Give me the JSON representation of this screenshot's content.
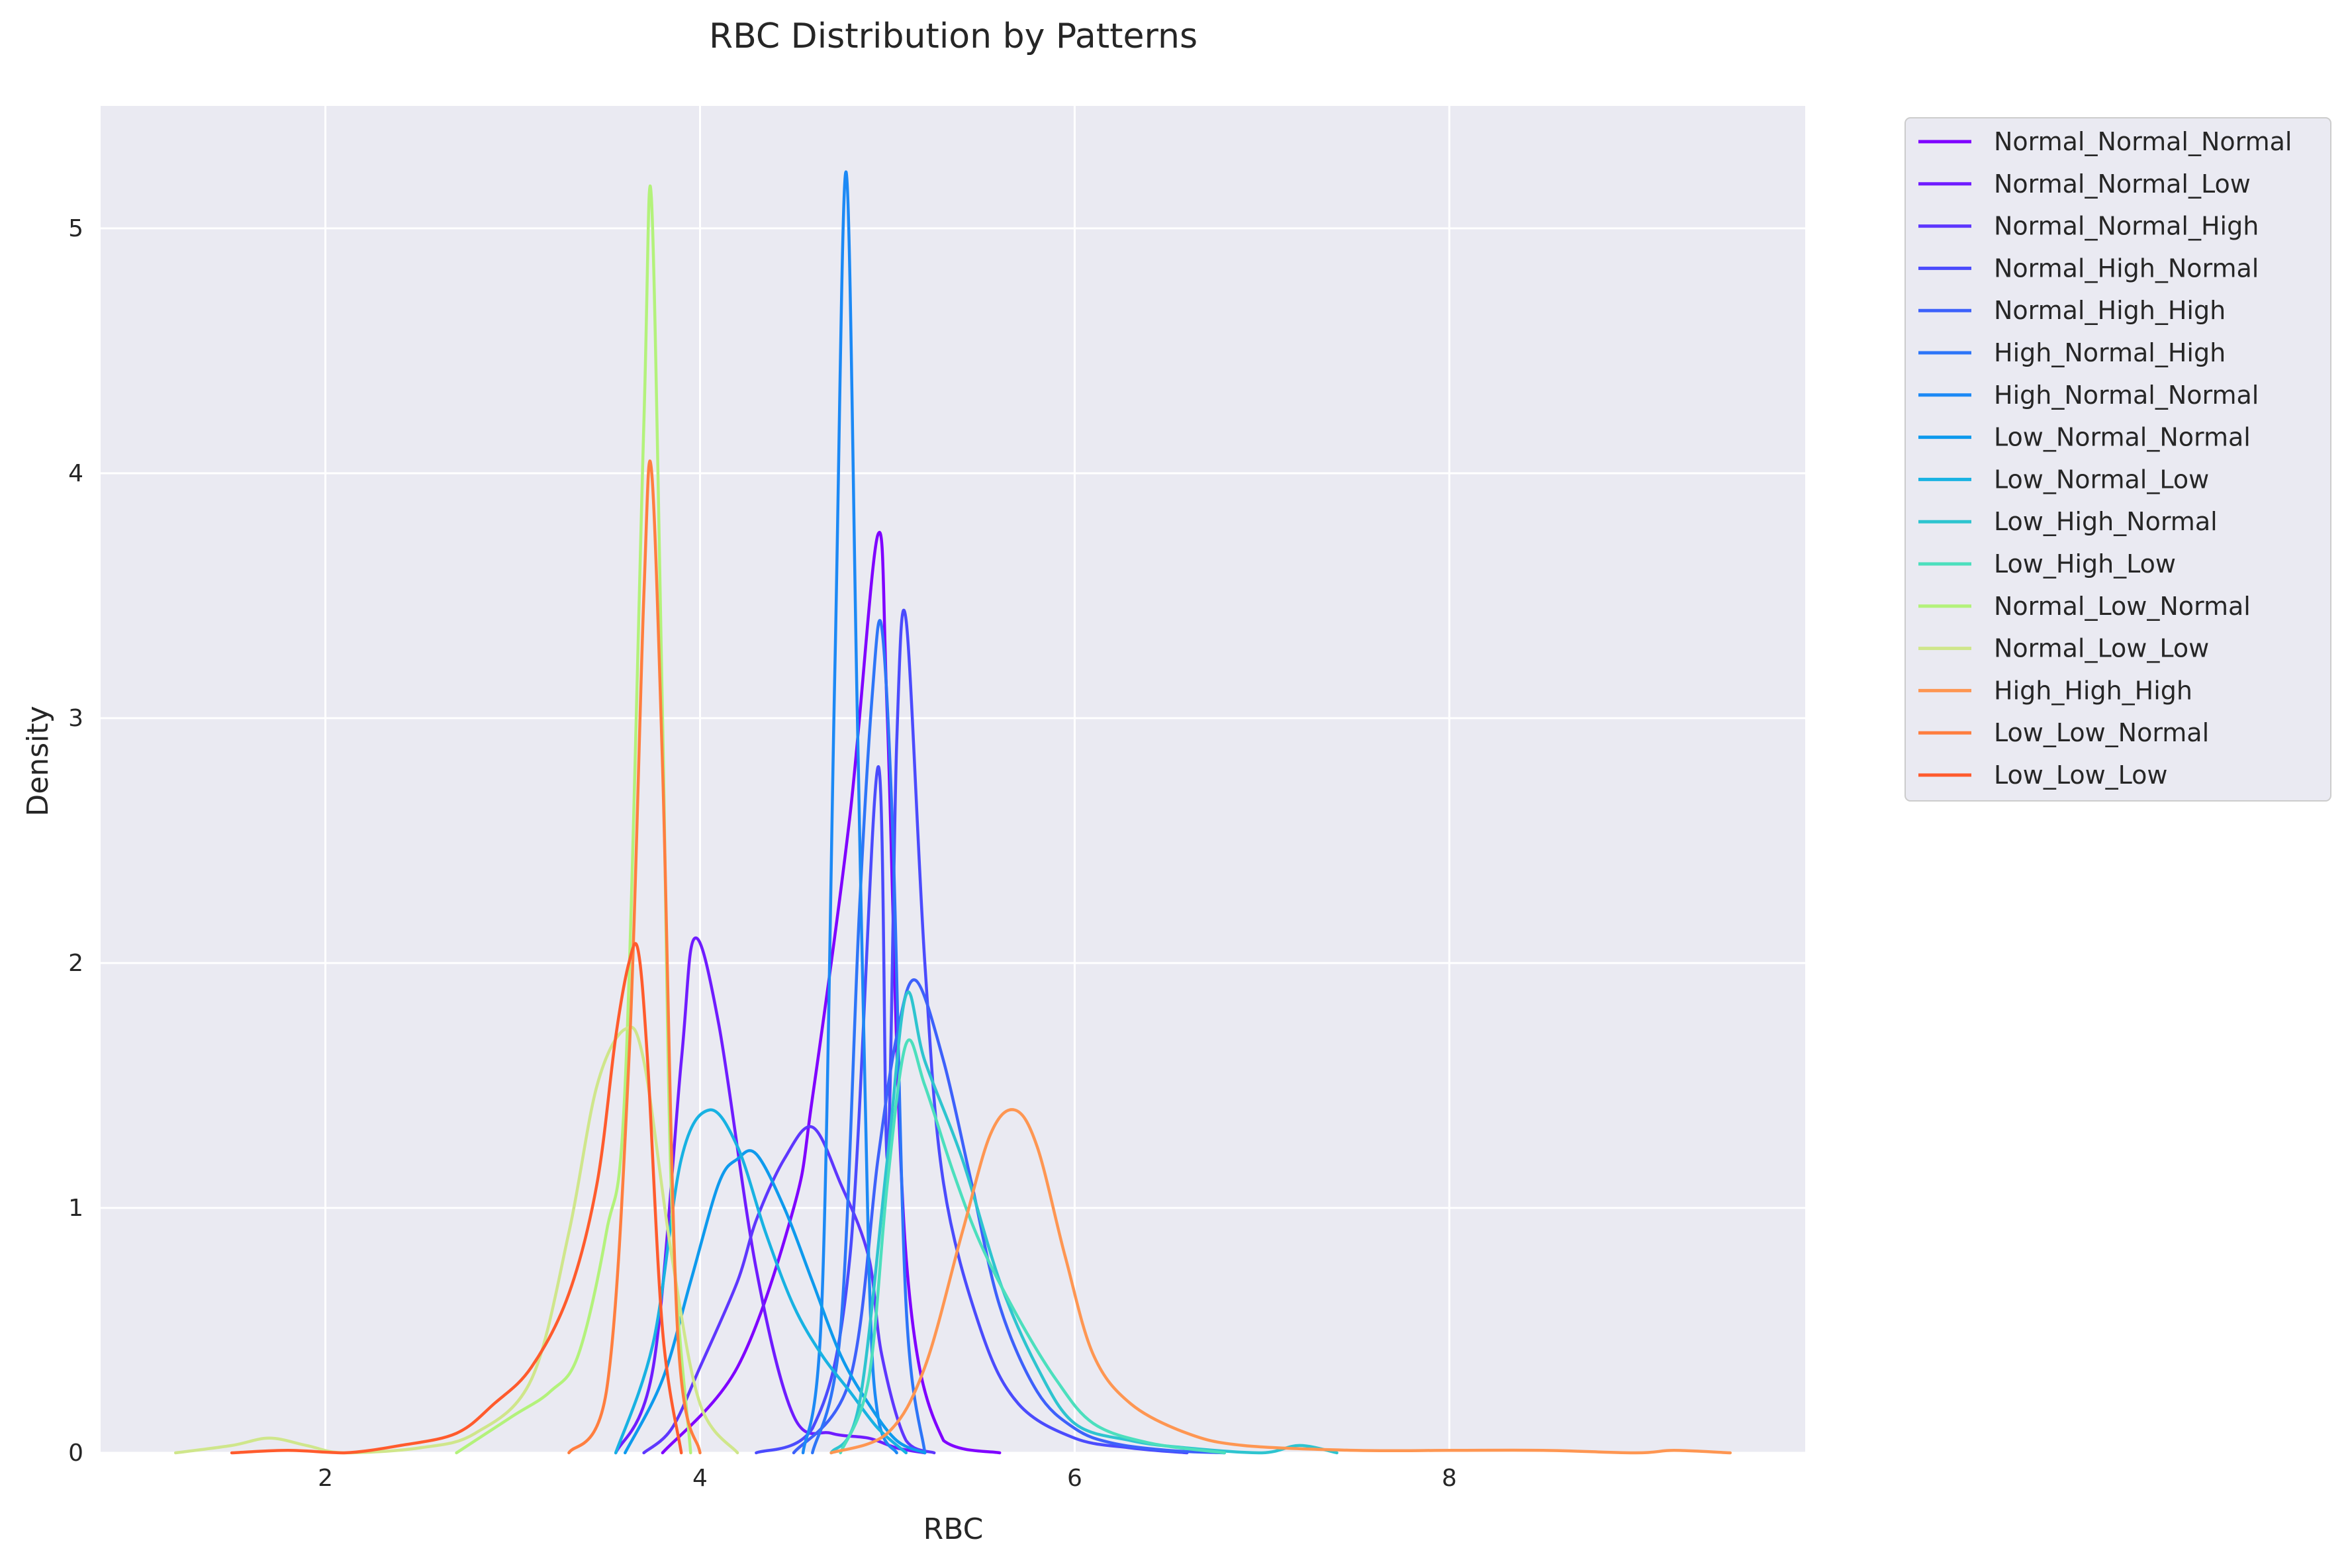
{
  "chart_data": {
    "type": "line",
    "title": "RBC Distribution by Patterns",
    "xlabel": "RBC",
    "ylabel": "Density",
    "xlim": [
      0.8,
      9.9
    ],
    "ylim": [
      0,
      5.5
    ],
    "xticks": [
      2,
      4,
      6,
      8
    ],
    "yticks": [
      0,
      1,
      2,
      3,
      4,
      5
    ],
    "grid": true,
    "legend_position": "outside-top-right",
    "background": "#eaeaf2",
    "series": [
      {
        "name": "Normal_Normal_Normal",
        "color": "#7f00ff",
        "x": [
          3.8,
          4.2,
          4.5,
          4.6,
          4.8,
          4.95,
          5.0,
          5.1,
          5.3,
          5.6
        ],
        "y": [
          0,
          0.35,
          1.0,
          1.45,
          2.6,
          3.75,
          3.0,
          0.8,
          0.05,
          0
        ]
      },
      {
        "name": "Normal_Normal_Low",
        "color": "#6f1cff",
        "x": [
          3.55,
          3.75,
          3.9,
          3.97,
          4.1,
          4.3,
          4.5,
          4.7,
          4.9,
          5.05,
          5.2
        ],
        "y": [
          0,
          0.35,
          1.6,
          2.1,
          1.75,
          0.75,
          0.15,
          0.08,
          0.06,
          0.02,
          0
        ]
      },
      {
        "name": "Normal_Normal_High",
        "color": "#5e37fe",
        "x": [
          3.7,
          3.85,
          4.0,
          4.2,
          4.3,
          4.45,
          4.6,
          4.75,
          4.9,
          4.97,
          5.1,
          5.25
        ],
        "y": [
          0,
          0.1,
          0.35,
          0.7,
          0.95,
          1.2,
          1.33,
          1.1,
          0.8,
          0.4,
          0.05,
          0
        ]
      },
      {
        "name": "Normal_High_Normal",
        "color": "#4b4bfd",
        "x": [
          4.3,
          4.6,
          4.8,
          4.95,
          5.0,
          5.05,
          5.1,
          5.2,
          5.3,
          5.5,
          5.7,
          6.0,
          6.3,
          6.6
        ],
        "y": [
          0,
          0.1,
          0.8,
          2.8,
          1.2,
          2.9,
          3.4,
          2.0,
          1.1,
          0.5,
          0.2,
          0.06,
          0.02,
          0
        ]
      },
      {
        "name": "Normal_High_High",
        "color": "#3d61fb",
        "x": [
          4.5,
          4.8,
          4.95,
          5.05,
          5.15,
          5.3,
          5.45,
          5.6,
          5.8,
          6.0,
          6.2,
          6.5,
          6.8
        ],
        "y": [
          0,
          0.3,
          1.2,
          1.7,
          1.93,
          1.6,
          1.1,
          0.6,
          0.25,
          0.1,
          0.04,
          0.01,
          0
        ]
      },
      {
        "name": "High_Normal_High",
        "color": "#2d75f8",
        "x": [
          4.6,
          4.75,
          4.85,
          4.92,
          4.97,
          5.03,
          5.1,
          5.2
        ],
        "y": [
          0,
          0.5,
          2.2,
          3.1,
          3.37,
          2.5,
          0.6,
          0
        ]
      },
      {
        "name": "High_Normal_Normal",
        "color": "#1c89f5",
        "x": [
          4.55,
          4.65,
          4.72,
          4.78,
          4.84,
          4.9,
          4.95,
          5.05
        ],
        "y": [
          0,
          0.6,
          3.2,
          5.23,
          3.0,
          0.8,
          0.15,
          0
        ]
      },
      {
        "name": "Low_Normal_Normal",
        "color": "#0e9aed",
        "x": [
          3.6,
          3.8,
          3.95,
          4.1,
          4.2,
          4.3,
          4.45,
          4.6,
          4.75,
          4.9,
          5.05,
          5.2
        ],
        "y": [
          0,
          0.3,
          0.7,
          1.1,
          1.2,
          1.22,
          1.0,
          0.7,
          0.4,
          0.2,
          0.05,
          0
        ]
      },
      {
        "name": "Low_Normal_Low",
        "color": "#18b2e2",
        "x": [
          3.55,
          3.75,
          3.9,
          4.05,
          4.2,
          4.35,
          4.5,
          4.65,
          4.8,
          4.95,
          5.1
        ],
        "y": [
          0,
          0.45,
          1.2,
          1.4,
          1.25,
          0.9,
          0.6,
          0.4,
          0.25,
          0.1,
          0
        ]
      },
      {
        "name": "Low_High_Normal",
        "color": "#2ec4cf",
        "x": [
          4.7,
          4.85,
          5.0,
          5.1,
          5.2,
          5.4,
          5.6,
          5.8,
          6.0,
          6.3,
          6.6,
          7.0,
          7.2,
          7.4
        ],
        "y": [
          0,
          0.2,
          1.2,
          1.87,
          1.6,
          1.2,
          0.7,
          0.35,
          0.12,
          0.05,
          0.02,
          0,
          0.03,
          0
        ]
      },
      {
        "name": "Low_High_Low",
        "color": "#4cdfbd",
        "x": [
          4.75,
          4.9,
          5.0,
          5.1,
          5.2,
          5.35,
          5.5,
          5.7,
          5.9,
          6.1,
          6.4,
          6.8
        ],
        "y": [
          0,
          0.3,
          1.1,
          1.67,
          1.5,
          1.15,
          0.85,
          0.55,
          0.3,
          0.12,
          0.04,
          0
        ]
      },
      {
        "name": "Normal_Low_Normal",
        "color": "#b3f27b",
        "x": [
          2.7,
          3.0,
          3.2,
          3.35,
          3.5,
          3.6,
          3.7,
          3.74,
          3.8,
          3.85,
          3.95
        ],
        "y": [
          0,
          0.15,
          0.25,
          0.4,
          0.9,
          1.5,
          4.2,
          5.13,
          3.0,
          1.0,
          0
        ]
      },
      {
        "name": "Normal_Low_Low",
        "color": "#cfe68b",
        "x": [
          1.2,
          1.5,
          1.7,
          1.9,
          2.1,
          2.5,
          2.8,
          3.1,
          3.3,
          3.45,
          3.6,
          3.7,
          3.85,
          4.0,
          4.2
        ],
        "y": [
          0,
          0.03,
          0.06,
          0.03,
          0,
          0.02,
          0.08,
          0.3,
          0.9,
          1.5,
          1.73,
          1.6,
          0.8,
          0.2,
          0
        ]
      },
      {
        "name": "High_High_High",
        "color": "#fe9652",
        "x": [
          4.7,
          5.0,
          5.2,
          5.4,
          5.55,
          5.68,
          5.8,
          5.95,
          6.1,
          6.3,
          6.6,
          6.9,
          7.5,
          8.0,
          8.5,
          9.0,
          9.2,
          9.5
        ],
        "y": [
          0,
          0.08,
          0.35,
          0.9,
          1.3,
          1.4,
          1.25,
          0.8,
          0.4,
          0.2,
          0.08,
          0.03,
          0.01,
          0.01,
          0.01,
          0,
          0.01,
          0
        ]
      },
      {
        "name": "Low_Low_Normal",
        "color": "#ff7e3f",
        "x": [
          3.3,
          3.5,
          3.62,
          3.7,
          3.74,
          3.8,
          3.88,
          4.0
        ],
        "y": [
          0,
          0.25,
          1.6,
          3.5,
          4.02,
          2.8,
          0.5,
          0
        ]
      },
      {
        "name": "Low_Low_Low",
        "color": "#ff5b2d",
        "x": [
          1.5,
          1.8,
          2.1,
          2.4,
          2.7,
          2.9,
          3.1,
          3.3,
          3.45,
          3.55,
          3.62,
          3.67,
          3.72,
          3.8,
          3.9
        ],
        "y": [
          0,
          0.01,
          0.0,
          0.03,
          0.08,
          0.2,
          0.35,
          0.65,
          1.1,
          1.7,
          2.0,
          2.05,
          1.6,
          0.5,
          0
        ]
      }
    ]
  }
}
